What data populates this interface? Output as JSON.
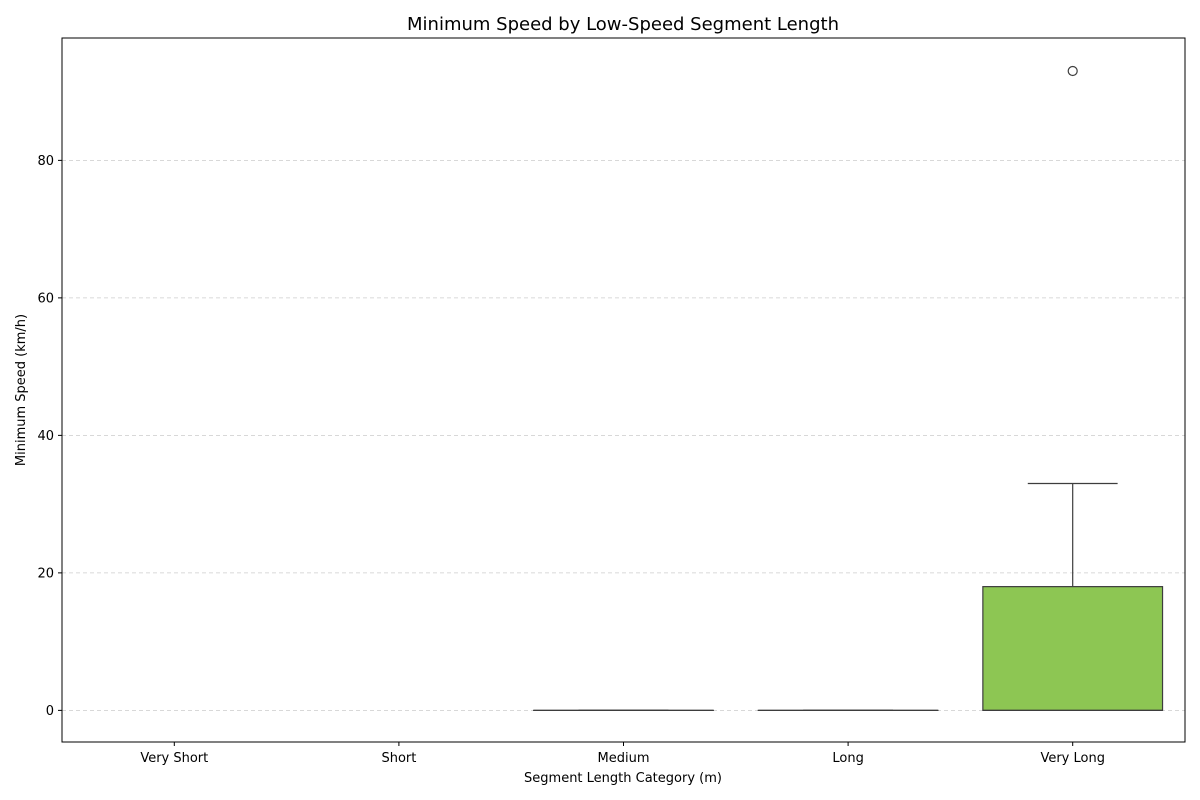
{
  "chart_data": {
    "type": "box",
    "title": "Minimum Speed by Low-Speed Segment Length",
    "xlabel": "Segment Length Category (m)",
    "ylabel": "Minimum Speed (km/h)",
    "categories": [
      "Very Short",
      "Short",
      "Medium",
      "Long",
      "Very Long"
    ],
    "ylim": [
      -4.6,
      97.8
    ],
    "yticks": [
      0,
      20,
      40,
      60,
      80
    ],
    "grid": {
      "y": true,
      "style": "dashed"
    },
    "boxes": [
      {
        "category": "Very Short",
        "present": false
      },
      {
        "category": "Short",
        "present": false
      },
      {
        "category": "Medium",
        "present": true,
        "whisker_low": 0,
        "q1": 0,
        "median": 0,
        "q3": 0,
        "whisker_high": 0,
        "outliers": [],
        "color": "#ffffff"
      },
      {
        "category": "Long",
        "present": true,
        "whisker_low": 0,
        "q1": 0,
        "median": 0,
        "q3": 0,
        "whisker_high": 0,
        "outliers": [],
        "color": "#ffffff"
      },
      {
        "category": "Very Long",
        "present": true,
        "whisker_low": 0,
        "q1": 0,
        "median": 0,
        "q3": 18,
        "whisker_high": 33,
        "outliers": [
          93
        ],
        "color": "#8dc653"
      }
    ]
  }
}
